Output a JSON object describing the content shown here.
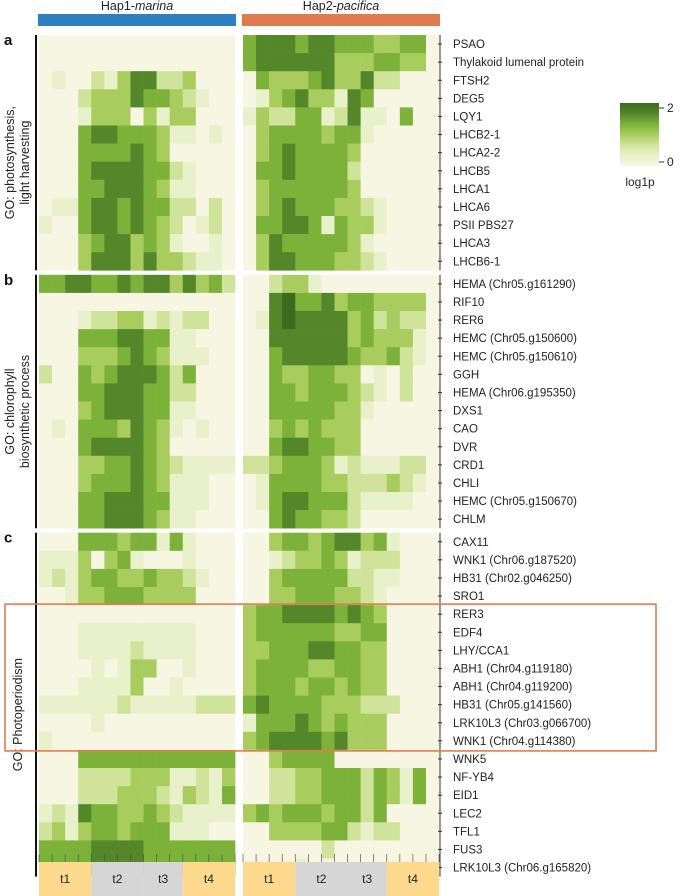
{
  "chart_data": {
    "type": "heatmap",
    "groups": [
      {
        "label_prefix": "Hap1-",
        "label_italic": "marina",
        "color": "#2e7fbf"
      },
      {
        "label_prefix": "Hap2-",
        "label_italic": "pacifica",
        "color": "#e07b50"
      }
    ],
    "timepoints": [
      {
        "label": "t1",
        "color": "#fcd98c"
      },
      {
        "label": "t2",
        "color": "#d6d6d6"
      },
      {
        "label": "t3",
        "color": "#d6d6d6"
      },
      {
        "label": "t4",
        "color": "#fcd98c"
      }
    ],
    "legend": {
      "title": "log1p",
      "max_label": "2",
      "min_label": "0",
      "range": [
        0,
        2
      ]
    },
    "colors": [
      "#f7f6e3",
      "#e9f1cb",
      "#cfe49a",
      "#a8cd5e",
      "#7cb23a",
      "#54862a",
      "#3e6a1f"
    ],
    "panels": [
      {
        "letter": "a",
        "go_label_1": "GO: photosynthesis,",
        "go_label_2": "light harvesting",
        "genes": [
          "PSAO",
          "Thylakoid lumenal protein",
          "FTSH2",
          "DEG5",
          "LQY1",
          "LHCB2-1",
          "LHCA2-2",
          "LHCB5",
          "LHCA1",
          "LHCA6",
          "PSII PBS27",
          "LHCA3",
          "LHCB6-1"
        ],
        "values": [
          "000000000000000 45554554443344",
          "000000000000000 45555553334433",
          "010021355223000 04333453352200",
          "000233354432100 01345331540000",
          "000133303133000 13224412511040",
          "000455444311010 03444434410000",
          "000444454300000 03454444300000",
          "000455554421000 04454444200000",
          "000445554311000 03444444300000",
          "011455454422020 03454443321000",
          "100455454320120 04455414331000",
          "000345534310010 03544444310000",
          "000355535332110 03554443321000"
        ]
      },
      {
        "letter": "b",
        "go_label_1": "GO: chlorophyll",
        "go_label_2": "biosynthetic process",
        "genes": [
          "HEMA (Chr05.g161290)",
          "RIF10",
          "RER6",
          "HEMC (Chr05.g150600)",
          "HEMC (Chr05.g150610)",
          "GGH",
          "HEMA (Chr06.g195350)",
          "DXS1",
          "CAO",
          "DVR",
          "CRD1",
          "CHLI",
          "HEMC (Chr05.g150670)",
          "CHLM"
        ],
        "values": [
          "445544545535342 00233100000000",
          "000000000000000 00564453443333",
          "000122331212200 01565555342322",
          "000444554411000 00555555343331",
          "000333454311100 00455555433421",
          "200434555424000 00433443301020",
          "000445554422000 00443444321020",
          "000345554411000 00444443310000",
          "010444354310100 00343433300000",
          "000455554300000 00455443300000",
          "000334454321111 22344431211122",
          "000344454311100 01444433222321",
          "000445554411100 01455444211110",
          "000445554311000 00454433200000"
        ]
      },
      {
        "letter": "c",
        "go_label_1": "GO: Photoperiodism",
        "go_label_2": "",
        "genes": [
          "CAX11",
          "WNK1 (Chr06.g187520)",
          "HB31 (Chr02.g046250)",
          "SRO1",
          "RER3",
          "EDF4",
          "LHY/CCA1",
          "ABH1 (Chr04.g119180)",
          "ABH1 (Chr04.g119200)",
          "HB31 (Chr05.g141560)",
          "LRK10L3 (Chr03.g066700)",
          "WNK1 (Chr04.g114380)",
          "WNK5",
          "NF-YB4",
          "EID1",
          "LEC2",
          "TFL1",
          "FUS3",
          "LRK10L3 (Chr06.g165820)"
        ],
        "values": [
          "000444344141000 00344345534100",
          "111303410001000 00123343122200",
          "121344334332100 00344444221100",
          "001334443333000 00334443321000",
          "000000000000000 34455554543000",
          "000111111111000 34444443344000",
          "000111121111000 33444554433000",
          "000010133001000 34444334433000",
          "000111130010000 34443443433000",
          "111111211111222 45444433322200",
          "000010000000000 14445434333000",
          "100000000000000 34555545333000",
          "000444444444444 00344440000000",
          "000222233311213 00223344424314",
          "000222333213214 00223344424314",
          "121544334321111 34344434424000",
          "231344344411100 00333344212200",
          "444455554444444 00000020000000",
          "444455554444444 00001000000000"
        ]
      }
    ],
    "highlight_box": {
      "panel": "c",
      "first_gene": "RER3",
      "last_gene": "WNK1 (Chr04.g114380)",
      "color": "#e07b50"
    }
  }
}
